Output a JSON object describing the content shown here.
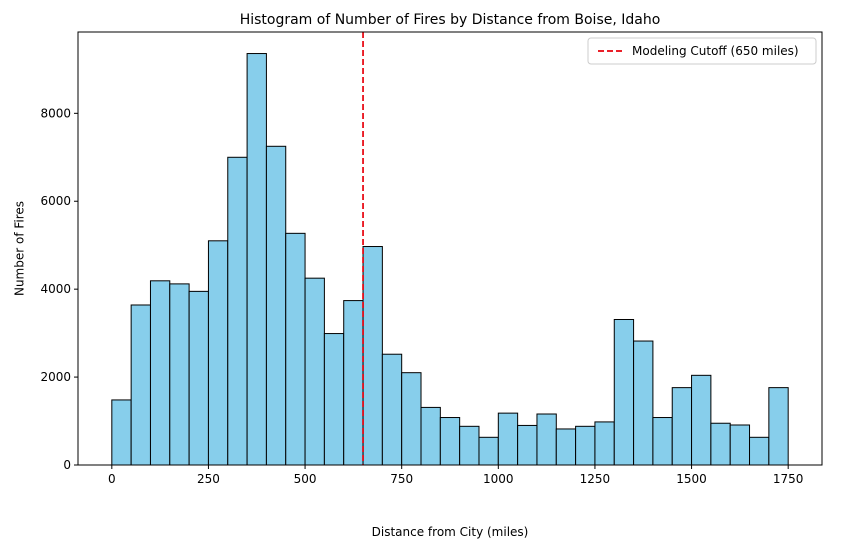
{
  "chart_data": {
    "type": "bar",
    "title": "Histogram of Number of Fires by Distance from Boise, Idaho",
    "xlabel": "Distance from City (miles)",
    "ylabel": "Number of Fires",
    "xlim": [
      -87.5,
      1837.5
    ],
    "ylim": [
      0,
      9850
    ],
    "bin_width": 50,
    "bins": [
      {
        "start": 0,
        "count": 1480
      },
      {
        "start": 50,
        "count": 3640
      },
      {
        "start": 100,
        "count": 4190
      },
      {
        "start": 150,
        "count": 4120
      },
      {
        "start": 200,
        "count": 3950
      },
      {
        "start": 250,
        "count": 5100
      },
      {
        "start": 300,
        "count": 7000
      },
      {
        "start": 350,
        "count": 9360
      },
      {
        "start": 400,
        "count": 7250
      },
      {
        "start": 450,
        "count": 5270
      },
      {
        "start": 500,
        "count": 4250
      },
      {
        "start": 550,
        "count": 2990
      },
      {
        "start": 600,
        "count": 3740
      },
      {
        "start": 650,
        "count": 4970
      },
      {
        "start": 700,
        "count": 2520
      },
      {
        "start": 750,
        "count": 2100
      },
      {
        "start": 800,
        "count": 1310
      },
      {
        "start": 850,
        "count": 1080
      },
      {
        "start": 900,
        "count": 880
      },
      {
        "start": 950,
        "count": 630
      },
      {
        "start": 1000,
        "count": 1180
      },
      {
        "start": 1050,
        "count": 900
      },
      {
        "start": 1100,
        "count": 1160
      },
      {
        "start": 1150,
        "count": 820
      },
      {
        "start": 1200,
        "count": 880
      },
      {
        "start": 1250,
        "count": 980
      },
      {
        "start": 1300,
        "count": 3310
      },
      {
        "start": 1350,
        "count": 2820
      },
      {
        "start": 1400,
        "count": 1080
      },
      {
        "start": 1450,
        "count": 1760
      },
      {
        "start": 1500,
        "count": 2040
      },
      {
        "start": 1550,
        "count": 950
      },
      {
        "start": 1600,
        "count": 910
      },
      {
        "start": 1650,
        "count": 630
      },
      {
        "start": 1700,
        "count": 1760
      }
    ],
    "xticks": [
      "0",
      "250",
      "500",
      "750",
      "1000",
      "1250",
      "1500",
      "1750"
    ],
    "xtick_values": [
      0,
      250,
      500,
      750,
      1000,
      1250,
      1500,
      1750
    ],
    "yticks": [
      "0",
      "2000",
      "4000",
      "6000",
      "8000"
    ],
    "ytick_values": [
      0,
      2000,
      4000,
      6000,
      8000
    ],
    "cutoff": {
      "x": 650,
      "label": "Modeling Cutoff (650 miles)",
      "color": "#e8000b"
    },
    "bar_color": "#87ceeb",
    "bar_edge_color": "#000000",
    "legend_position": "top-right",
    "grid": false
  }
}
